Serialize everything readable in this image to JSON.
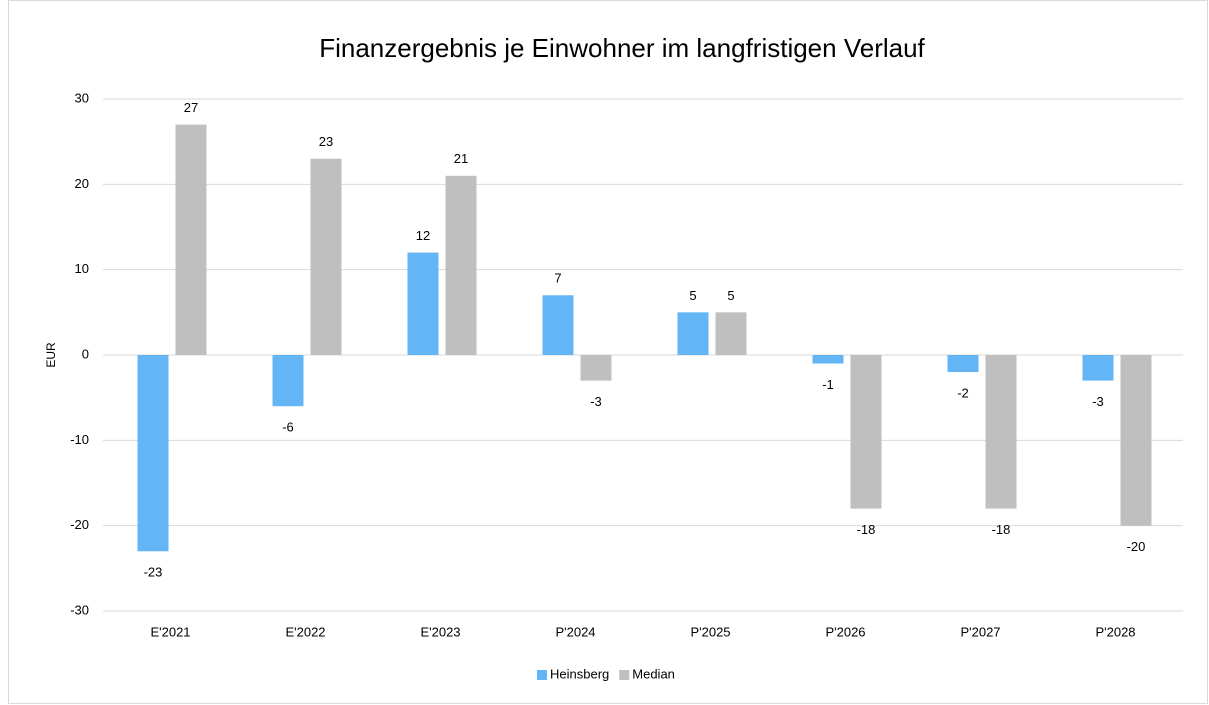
{
  "chart_data": {
    "type": "bar",
    "title": "Finanzergebnis je Einwohner im langfristigen Verlauf",
    "y_label": "EUR",
    "categories": [
      "E'2021",
      "E'2022",
      "E'2023",
      "P'2024",
      "P'2025",
      "P'2026",
      "P'2027",
      "P'2028"
    ],
    "series": [
      {
        "name": "Heinsberg",
        "color": "#63b5f5",
        "values": [
          -23,
          -6,
          12,
          7,
          5,
          -1,
          -2,
          -3
        ]
      },
      {
        "name": "Median",
        "color": "#bfbfbf",
        "values": [
          27,
          23,
          21,
          -3,
          5,
          -18,
          -18,
          -20
        ]
      }
    ],
    "ylim": [
      -30,
      30
    ],
    "yticks": [
      -30,
      -20,
      -10,
      0,
      10,
      20,
      30
    ],
    "grid": true,
    "legend": "bottom"
  }
}
